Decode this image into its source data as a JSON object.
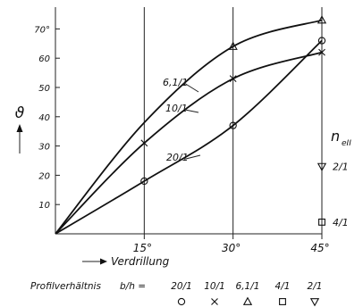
{
  "chart_data": {
    "type": "line",
    "ylabel": "ϑ",
    "xlabel": "Verdrillung",
    "x_ticks": [
      "15°",
      "30°",
      "45°"
    ],
    "y_ticks": [
      "10",
      "20",
      "30",
      "40",
      "50",
      "60",
      "70°"
    ],
    "ylim": [
      0,
      75
    ],
    "xlim": [
      0,
      45
    ],
    "series": [
      {
        "name": "6,1/1",
        "marker": "triangle",
        "x": [
          30,
          45
        ],
        "y": [
          64,
          73
        ],
        "label": "6,1/1"
      },
      {
        "name": "10/1",
        "marker": "cross",
        "x": [
          15,
          30,
          45
        ],
        "y": [
          31,
          53,
          62
        ],
        "label": "10/1"
      },
      {
        "name": "20/1",
        "marker": "circle",
        "x": [
          15,
          30,
          45
        ],
        "y": [
          18,
          37,
          66
        ],
        "label": "20/1"
      },
      {
        "name": "2/1",
        "marker": "nabla",
        "x": [
          45
        ],
        "y": [
          23
        ],
        "label": "2/1"
      },
      {
        "name": "4/1",
        "marker": "square",
        "x": [
          45
        ],
        "y": [
          4
        ],
        "label": "4/1"
      }
    ],
    "right_axis_label": "n",
    "right_axis_label_sub": "eII",
    "legend": {
      "prefix": "Profilverhältnis",
      "expr": "b/h =",
      "items": [
        "20/1",
        "10/1",
        "6,1/1",
        "4/1",
        "2/1"
      ],
      "symbols": [
        "circle",
        "cross",
        "triangle",
        "square",
        "nabla"
      ]
    }
  }
}
